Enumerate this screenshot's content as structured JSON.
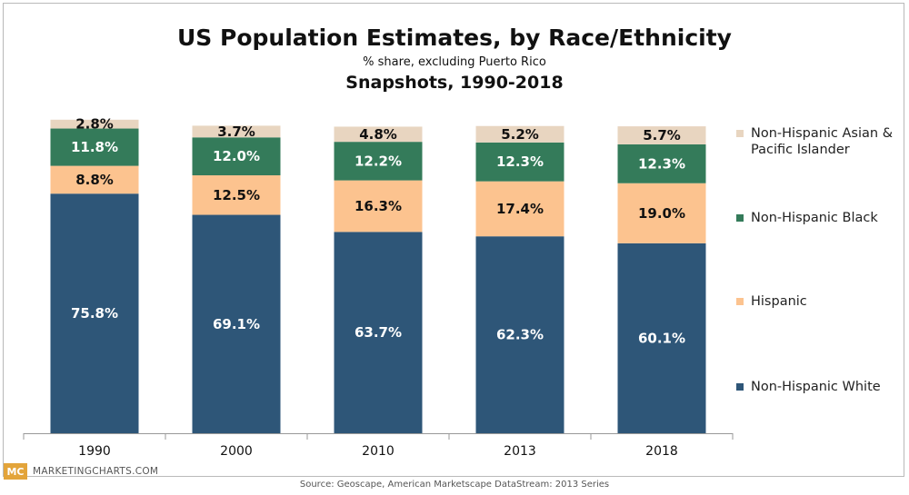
{
  "header": {
    "title": "US Population Estimates, by Race/Ethnicity",
    "subtitle": "% share, excluding Puerto Rico",
    "subtitle2": "Snapshots, 1990-2018"
  },
  "footer": {
    "brand_logo": "MC",
    "brand_name": "MARKETINGCHARTS.COM",
    "source": "Source: Geoscape, American Marketscape DataStream: 2013 Series"
  },
  "chart_data": {
    "type": "bar",
    "stacked": true,
    "categories": [
      "1990",
      "2000",
      "2010",
      "2013",
      "2018"
    ],
    "ylim": [
      0,
      100
    ],
    "grid": false,
    "legend_position": "right",
    "series": [
      {
        "name": "Non-Hispanic White",
        "color": "#2e5678",
        "values": [
          75.8,
          69.1,
          63.7,
          62.3,
          60.1
        ],
        "labels": [
          "75.8%",
          "69.1%",
          "63.7%",
          "62.3%",
          "60.1%"
        ],
        "label_color": "#ffffff"
      },
      {
        "name": "Hispanic",
        "color": "#fcc38f",
        "values": [
          8.8,
          12.5,
          16.3,
          17.4,
          19.0
        ],
        "labels": [
          "8.8%",
          "12.5%",
          "16.3%",
          "17.4%",
          "19.0%"
        ],
        "label_color": "#111111"
      },
      {
        "name": "Non-Hispanic Black",
        "color": "#347b5a",
        "values": [
          11.8,
          12.0,
          12.2,
          12.3,
          12.3
        ],
        "labels": [
          "11.8%",
          "12.0%",
          "12.2%",
          "12.3%",
          "12.3%"
        ],
        "label_color": "#ffffff"
      },
      {
        "name": "Non-Hispanic Asian & Pacific Islander",
        "color": "#e8d5c0",
        "values": [
          2.8,
          3.7,
          4.8,
          5.2,
          5.7
        ],
        "labels": [
          "2.8%",
          "3.7%",
          "4.8%",
          "5.2%",
          "5.7%"
        ],
        "label_color": "#111111"
      }
    ],
    "legend_order": [
      3,
      2,
      1,
      0
    ]
  }
}
